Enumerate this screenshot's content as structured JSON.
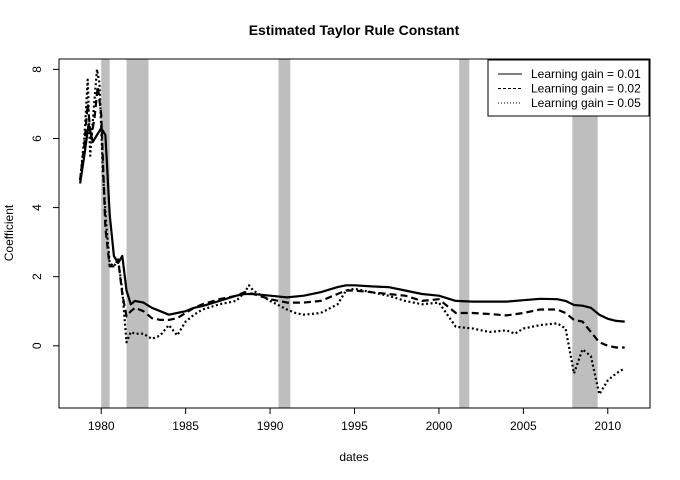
{
  "chart_data": {
    "type": "line",
    "title": "Estimated Taylor Rule Constant",
    "xlabel": "dates",
    "ylabel": "Coefficient",
    "xlim": [
      1977.5,
      2012.5
    ],
    "ylim": [
      -1.8,
      8.3
    ],
    "xticks": [
      1980,
      1985,
      1990,
      1995,
      2000,
      2005,
      2010
    ],
    "yticks": [
      0,
      2,
      4,
      6,
      8
    ],
    "grid": false,
    "legend_position": "top-right",
    "recessions": [
      [
        1980.0,
        1980.5
      ],
      [
        1981.5,
        1982.8
      ],
      [
        1990.5,
        1991.2
      ],
      [
        2001.2,
        2001.8
      ],
      [
        2007.9,
        2009.4
      ]
    ],
    "series": [
      {
        "name": "Learning gain = 0.01",
        "style": "solid",
        "x": [
          1978.75,
          1979.0,
          1979.25,
          1979.5,
          1979.75,
          1980.0,
          1980.25,
          1980.5,
          1980.75,
          1981.0,
          1981.25,
          1981.5,
          1981.75,
          1982.0,
          1982.5,
          1983.0,
          1983.5,
          1984.0,
          1984.5,
          1985.0,
          1985.5,
          1986.0,
          1987.0,
          1988.0,
          1988.5,
          1989.0,
          1990.0,
          1991.0,
          1992.0,
          1993.0,
          1994.0,
          1994.5,
          1995.0,
          1996.0,
          1997.0,
          1998.0,
          1999.0,
          2000.0,
          2001.0,
          2002.0,
          2003.0,
          2004.0,
          2005.0,
          2006.0,
          2007.0,
          2007.5,
          2008.0,
          2008.5,
          2009.0,
          2009.5,
          2010.0,
          2010.5,
          2011.0
        ],
        "y": [
          4.7,
          5.5,
          6.4,
          5.9,
          6.1,
          6.3,
          6.1,
          3.8,
          2.6,
          2.4,
          2.6,
          1.6,
          1.2,
          1.3,
          1.25,
          1.1,
          1.0,
          0.9,
          0.95,
          1.0,
          1.1,
          1.15,
          1.3,
          1.45,
          1.5,
          1.5,
          1.45,
          1.4,
          1.45,
          1.55,
          1.7,
          1.75,
          1.75,
          1.72,
          1.7,
          1.6,
          1.5,
          1.45,
          1.3,
          1.28,
          1.28,
          1.28,
          1.32,
          1.36,
          1.35,
          1.3,
          1.18,
          1.16,
          1.1,
          0.9,
          0.78,
          0.72,
          0.7
        ]
      },
      {
        "name": "Learning gain = 0.02",
        "style": "dashed",
        "x": [
          1978.75,
          1979.0,
          1979.2,
          1979.4,
          1979.6,
          1979.8,
          1980.0,
          1980.25,
          1980.5,
          1980.75,
          1981.0,
          1981.25,
          1981.5,
          1981.75,
          1982.0,
          1982.5,
          1983.0,
          1983.5,
          1984.0,
          1984.5,
          1985.0,
          1985.5,
          1986.0,
          1987.0,
          1988.0,
          1988.5,
          1989.0,
          1990.0,
          1991.0,
          1992.0,
          1993.0,
          1994.0,
          1994.5,
          1995.0,
          1996.0,
          1997.0,
          1998.0,
          1999.0,
          2000.0,
          2001.0,
          2002.0,
          2003.0,
          2004.0,
          2005.0,
          2006.0,
          2007.0,
          2007.5,
          2008.0,
          2008.5,
          2009.0,
          2009.5,
          2010.0,
          2010.5,
          2011.0
        ],
        "y": [
          4.8,
          5.8,
          7.0,
          6.0,
          6.6,
          7.5,
          6.7,
          3.4,
          2.3,
          2.3,
          2.5,
          1.5,
          0.85,
          1.0,
          1.1,
          1.0,
          0.8,
          0.75,
          0.75,
          0.8,
          0.95,
          1.1,
          1.2,
          1.35,
          1.45,
          1.55,
          1.5,
          1.35,
          1.25,
          1.25,
          1.3,
          1.5,
          1.6,
          1.6,
          1.55,
          1.5,
          1.45,
          1.3,
          1.35,
          0.95,
          0.95,
          0.92,
          0.88,
          0.95,
          1.05,
          1.05,
          0.95,
          0.75,
          0.7,
          0.4,
          0.1,
          0.0,
          -0.05,
          -0.05
        ]
      },
      {
        "name": "Learning gain = 0.05",
        "style": "dotted",
        "x": [
          1978.75,
          1979.0,
          1979.2,
          1979.35,
          1979.55,
          1979.75,
          1979.9,
          1980.1,
          1980.3,
          1980.5,
          1980.75,
          1981.0,
          1981.25,
          1981.5,
          1981.75,
          1982.0,
          1982.5,
          1983.0,
          1983.5,
          1984.0,
          1984.5,
          1985.0,
          1985.5,
          1986.0,
          1987.0,
          1988.0,
          1988.5,
          1988.75,
          1989.0,
          1990.0,
          1991.0,
          1991.5,
          1992.0,
          1993.0,
          1994.0,
          1994.5,
          1995.0,
          1996.0,
          1997.0,
          1998.0,
          1999.0,
          2000.0,
          2001.0,
          2002.0,
          2003.0,
          2004.0,
          2004.5,
          2005.0,
          2006.0,
          2007.0,
          2007.5,
          2008.0,
          2008.5,
          2009.0,
          2009.5,
          2010.0,
          2010.5,
          2011.0
        ],
        "y": [
          4.8,
          6.0,
          7.7,
          5.5,
          6.8,
          8.0,
          7.6,
          5.0,
          3.5,
          2.4,
          2.3,
          2.5,
          1.6,
          0.1,
          0.4,
          0.35,
          0.35,
          0.2,
          0.3,
          0.6,
          0.3,
          0.7,
          0.9,
          1.05,
          1.2,
          1.3,
          1.55,
          1.75,
          1.6,
          1.3,
          1.05,
          0.95,
          0.9,
          0.95,
          1.2,
          1.6,
          1.65,
          1.55,
          1.45,
          1.3,
          1.2,
          1.25,
          0.55,
          0.5,
          0.4,
          0.45,
          0.35,
          0.5,
          0.6,
          0.65,
          0.5,
          -0.8,
          -0.1,
          -0.3,
          -1.4,
          -1.0,
          -0.8,
          -0.65
        ]
      }
    ]
  }
}
